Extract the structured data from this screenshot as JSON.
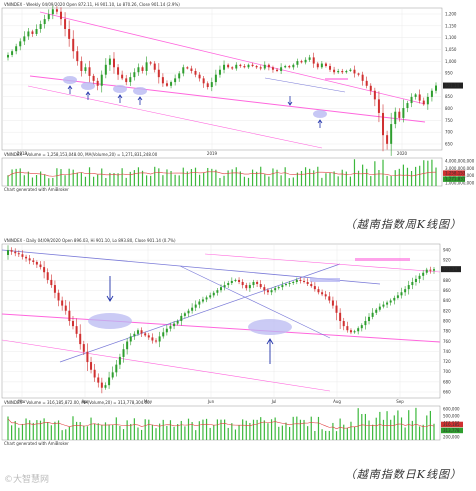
{
  "colors": {
    "up": "#2e9e2e",
    "down": "#d03030",
    "trend": "#ff66dd",
    "trend_blue": "#7a7ad8",
    "ellipse": "#b9b9f2",
    "arrow": "#2233aa",
    "volume": "#3cb83c",
    "ma": "#e04040",
    "grid": "#e6e6e6"
  },
  "chart_data": [
    {
      "type": "candlestick",
      "header": "VNINDEX - Weekly 04/09/2020 Open 872.11, Hi 901.10, Lo 870.26, Close 901.14 (2.9%)",
      "volume_header": "VNINDEX - Volume = 1,258,153,048.00, MA(Volume,20) = 1,271,831,248.00",
      "source_note": "Chart generated with AmiBroker",
      "x_ticks": [
        "2018",
        "2019",
        "2020"
      ],
      "y_ticks": [
        "1,200",
        "1,150",
        "1,100",
        "1,050",
        "1,000",
        "950",
        "900",
        "850",
        "800",
        "750",
        "700",
        "650"
      ],
      "ylim": [
        640,
        1215
      ],
      "last_price_label": "901.14",
      "volume_ticks": [
        "4,000,000,000",
        "3,000,000,000",
        "2,000,000,000",
        "1,000,000,000"
      ],
      "volume_last_labels": [
        "1,258,153",
        "1,271,831"
      ],
      "closes": [
        1025,
        1040,
        1060,
        1080,
        1100,
        1120,
        1110,
        1130,
        1150,
        1170,
        1190,
        1210,
        1200,
        1170,
        1130,
        1090,
        1040,
        1000,
        960,
        975,
        940,
        920,
        900,
        945,
        985,
        1010,
        975,
        945,
        930,
        915,
        935,
        955,
        975,
        960,
        995,
        990,
        965,
        935,
        910,
        900,
        915,
        930,
        950,
        975,
        970,
        960,
        945,
        930,
        910,
        895,
        915,
        945,
        965,
        985,
        975,
        970,
        985,
        980,
        975,
        985,
        980,
        975,
        970,
        985,
        975,
        965,
        960,
        975,
        980,
        975,
        985,
        1000,
        995,
        1005,
        1015,
        990,
        975,
        990,
        980,
        965,
        955,
        960,
        955,
        960,
        965,
        950,
        945,
        920,
        900,
        880,
        845,
        790,
        700,
        665,
        745,
        795,
        770,
        810,
        830,
        855,
        865,
        840,
        825,
        855,
        880,
        901
      ]
    },
    {
      "type": "candlestick",
      "header": "VNINDEX - Daily 04/09/2020 Open 896.03, Hi 901.10, Lo 893.80, Close 901.14 (0.7%)",
      "volume_header": "VNINDEX - Volume = 316,185,872.00, MA(Volume,20) = 313,778,304.00",
      "source_note": "Chart generated with AmiBroker",
      "x_ticks": [
        "Mar",
        "Apr",
        "May",
        "Jun",
        "Jul",
        "Aug",
        "Sep"
      ],
      "y_ticks": [
        "940",
        "920",
        "900",
        "880",
        "860",
        "840",
        "820",
        "800",
        "780",
        "760",
        "740",
        "720",
        "700",
        "680",
        "660"
      ],
      "ylim": [
        650,
        950
      ],
      "last_price_label": "901.14",
      "volume_ticks": [
        "600,000",
        "500,000",
        "400,000",
        "300,000",
        "200,000"
      ],
      "volume_last_labels": [
        "316,185",
        "313,778"
      ],
      "closes": [
        938,
        935,
        932,
        930,
        925,
        922,
        918,
        915,
        910,
        905,
        895,
        880,
        870,
        855,
        840,
        830,
        820,
        800,
        790,
        775,
        755,
        740,
        720,
        705,
        690,
        680,
        670,
        675,
        690,
        700,
        715,
        730,
        745,
        760,
        770,
        775,
        782,
        776,
        772,
        768,
        762,
        760,
        770,
        778,
        785,
        790,
        795,
        800,
        810,
        815,
        820,
        826,
        832,
        838,
        842,
        846,
        850,
        855,
        860,
        866,
        870,
        874,
        878,
        880,
        876,
        870,
        864,
        870,
        876,
        872,
        866,
        860,
        856,
        860,
        864,
        866,
        870,
        872,
        874,
        876,
        880,
        878,
        876,
        872,
        868,
        862,
        856,
        852,
        848,
        840,
        830,
        816,
        800,
        790,
        782,
        778,
        780,
        786,
        792,
        800,
        808,
        816,
        822,
        828,
        832,
        836,
        840,
        845,
        850,
        856,
        862,
        870,
        876,
        882,
        888,
        894,
        900,
        898,
        901
      ]
    }
  ],
  "captions": [
    "（越南指数周K线图）",
    "（越南指数日K线图）"
  ],
  "watermark": "©大智慧网"
}
